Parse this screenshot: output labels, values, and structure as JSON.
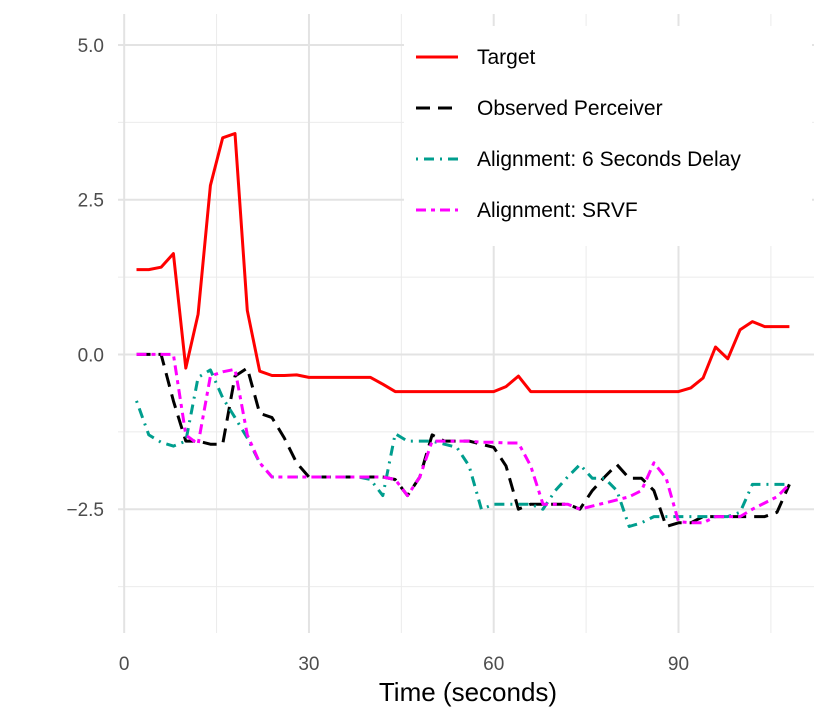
{
  "chart_data": {
    "type": "line",
    "title": "",
    "xlabel": "Time (seconds)",
    "ylabel": "",
    "xlim": [
      -1,
      112
    ],
    "ylim": [
      -4.5,
      5.5
    ],
    "x_ticks": [
      0,
      30,
      60,
      90
    ],
    "x_tick_labels": [
      "0",
      "30",
      "60",
      "90"
    ],
    "y_ticks": [
      5.0,
      2.5,
      0.0,
      -2.5
    ],
    "y_tick_labels": [
      "5.0",
      "2.5",
      "0.0",
      "−2.5"
    ],
    "grid": true,
    "legend_position": "top-right",
    "series": [
      {
        "name": "Target",
        "color": "#ff0000",
        "dash": "solid",
        "x": [
          2,
          4,
          6,
          8,
          10,
          12,
          14,
          16,
          18,
          20,
          22,
          24,
          26,
          28,
          30,
          32,
          34,
          36,
          38,
          40,
          42,
          44,
          46,
          48,
          50,
          52,
          54,
          56,
          58,
          60,
          62,
          64,
          66,
          68,
          70,
          72,
          74,
          76,
          78,
          80,
          82,
          84,
          86,
          88,
          90,
          92,
          94,
          96,
          98,
          100,
          102,
          104,
          106,
          108
        ],
        "y": [
          1.37,
          1.37,
          1.41,
          1.63,
          -0.22,
          0.65,
          2.73,
          3.5,
          3.57,
          0.71,
          -0.27,
          -0.34,
          -0.34,
          -0.33,
          -0.37,
          -0.37,
          -0.37,
          -0.37,
          -0.37,
          -0.37,
          -0.48,
          -0.6,
          -0.6,
          -0.6,
          -0.6,
          -0.6,
          -0.6,
          -0.6,
          -0.6,
          -0.6,
          -0.52,
          -0.35,
          -0.6,
          -0.6,
          -0.6,
          -0.6,
          -0.6,
          -0.6,
          -0.6,
          -0.6,
          -0.6,
          -0.6,
          -0.6,
          -0.6,
          -0.6,
          -0.54,
          -0.38,
          0.12,
          -0.07,
          0.4,
          0.53,
          0.45,
          0.45,
          0.45
        ]
      },
      {
        "name": "Observed Perceiver",
        "color": "#000000",
        "dash": "long",
        "x": [
          2,
          6,
          8,
          10,
          12,
          14,
          16,
          18,
          20,
          22,
          24,
          26,
          28,
          30,
          32,
          34,
          36,
          38,
          40,
          42,
          44,
          46,
          48,
          50,
          52,
          54,
          56,
          58,
          60,
          62,
          64,
          66,
          68,
          70,
          72,
          74,
          76,
          78,
          80,
          82,
          84,
          86,
          88,
          90,
          92,
          94,
          96,
          98,
          100,
          102,
          104,
          106,
          108
        ],
        "y": [
          0.0,
          0.0,
          -0.75,
          -1.4,
          -1.4,
          -1.45,
          -1.45,
          -0.35,
          -0.22,
          -0.95,
          -1.02,
          -1.35,
          -1.75,
          -1.98,
          -1.98,
          -1.98,
          -1.98,
          -1.98,
          -1.98,
          -1.98,
          -2.02,
          -2.28,
          -1.98,
          -1.3,
          -1.4,
          -1.4,
          -1.4,
          -1.45,
          -1.5,
          -1.8,
          -2.5,
          -2.42,
          -2.42,
          -2.42,
          -2.42,
          -2.5,
          -2.2,
          -1.98,
          -1.78,
          -2.0,
          -2.0,
          -2.2,
          -2.78,
          -2.72,
          -2.72,
          -2.62,
          -2.62,
          -2.62,
          -2.62,
          -2.62,
          -2.62,
          -2.55,
          -2.1
        ]
      },
      {
        "name": "Alignment: 6 Seconds Delay",
        "color": "#009e8e",
        "dash": "dotdash",
        "x": [
          2,
          4,
          6,
          8,
          10,
          12,
          14,
          16,
          18,
          20,
          22,
          24,
          26,
          28,
          30,
          32,
          34,
          36,
          38,
          40,
          42,
          44,
          46,
          48,
          50,
          52,
          54,
          56,
          58,
          60,
          62,
          64,
          66,
          68,
          70,
          72,
          74,
          76,
          78,
          80,
          82,
          84,
          86,
          88,
          90,
          92,
          94,
          96,
          98,
          100,
          102,
          104,
          106,
          108
        ],
        "y": [
          -0.75,
          -1.3,
          -1.42,
          -1.48,
          -1.4,
          -0.37,
          -0.25,
          -0.7,
          -1.02,
          -1.35,
          -1.75,
          -1.98,
          -1.98,
          -1.98,
          -1.98,
          -1.98,
          -1.98,
          -1.98,
          -1.98,
          -2.02,
          -2.28,
          -1.28,
          -1.4,
          -1.4,
          -1.4,
          -1.45,
          -1.5,
          -1.8,
          -2.5,
          -2.42,
          -2.42,
          -2.42,
          -2.42,
          -2.5,
          -2.2,
          -1.98,
          -1.78,
          -2.0,
          -2.0,
          -2.2,
          -2.78,
          -2.72,
          -2.62,
          -2.62,
          -2.62,
          -2.62,
          -2.62,
          -2.62,
          -2.62,
          -2.55,
          -2.1,
          -2.1,
          -2.1,
          -2.1
        ]
      },
      {
        "name": "Alignment: SRVF",
        "color": "#ff00ff",
        "dash": "twodash",
        "x": [
          2,
          4,
          6,
          8,
          10,
          12,
          14,
          16,
          18,
          20,
          22,
          24,
          26,
          28,
          30,
          32,
          34,
          36,
          38,
          40,
          42,
          44,
          46,
          48,
          50,
          52,
          54,
          56,
          58,
          60,
          62,
          64,
          66,
          68,
          70,
          72,
          74,
          76,
          78,
          80,
          82,
          84,
          86,
          88,
          90,
          92,
          94,
          96,
          98,
          100,
          102,
          104,
          106,
          108
        ],
        "y": [
          0.0,
          0.0,
          0.0,
          0.0,
          -1.3,
          -1.45,
          -0.35,
          -0.28,
          -0.24,
          -1.3,
          -1.75,
          -1.98,
          -1.98,
          -1.98,
          -1.98,
          -1.98,
          -1.98,
          -1.98,
          -1.98,
          -1.98,
          -1.98,
          -2.02,
          -2.28,
          -1.98,
          -1.4,
          -1.4,
          -1.4,
          -1.4,
          -1.42,
          -1.42,
          -1.43,
          -1.43,
          -1.8,
          -2.42,
          -2.42,
          -2.42,
          -2.5,
          -2.45,
          -2.4,
          -2.35,
          -2.3,
          -2.2,
          -1.75,
          -2.0,
          -2.7,
          -2.72,
          -2.72,
          -2.62,
          -2.62,
          -2.62,
          -2.5,
          -2.4,
          -2.3,
          -2.1
        ]
      }
    ]
  }
}
